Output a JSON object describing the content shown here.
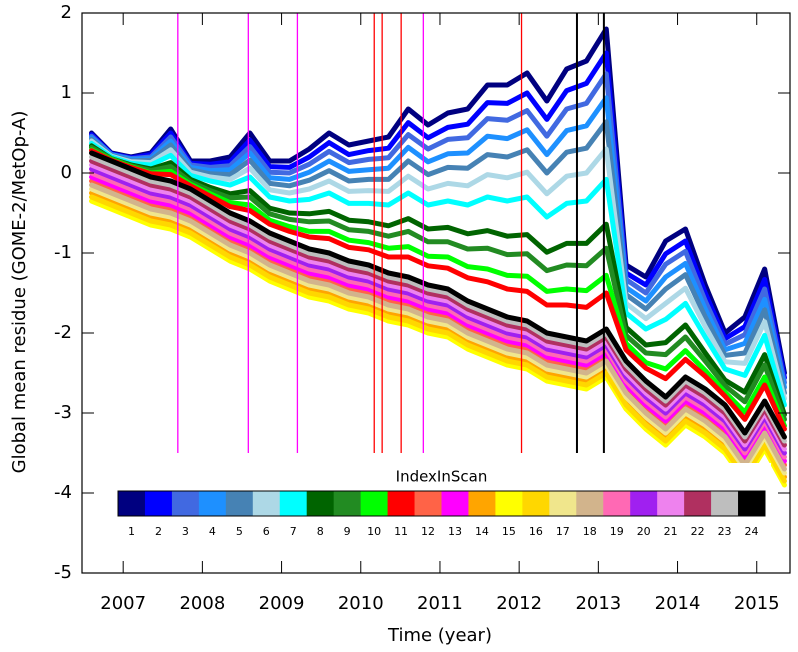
{
  "chart_data": {
    "type": "line",
    "x_label": "Time (year)",
    "y_label": "Global mean residue (GOME-2/MetOp-A)",
    "legend": "bottom",
    "legend_title": "IndexInScan",
    "xlim": [
      2006.48,
      2015.42
    ],
    "xticks": [
      2007,
      2008,
      2009,
      2010,
      2011,
      2012,
      2013,
      2014,
      2015
    ],
    "ylim": [
      -5,
      2
    ],
    "yticks": [
      2,
      1,
      0,
      -1,
      -2,
      -3,
      -4,
      -5
    ],
    "vline_ymin": -3.5,
    "vlines": [
      {
        "x": 2007.69,
        "color": "#ff00ff"
      },
      {
        "x": 2008.58,
        "color": "#ff00ff"
      },
      {
        "x": 2009.2,
        "color": "#ff00ff"
      },
      {
        "x": 2010.17,
        "color": "#ff0000"
      },
      {
        "x": 2010.27,
        "color": "#ff0000"
      },
      {
        "x": 2010.51,
        "color": "#ff0000"
      },
      {
        "x": 2010.79,
        "color": "#ff00ff"
      },
      {
        "x": 2012.03,
        "color": "#ff0000"
      },
      {
        "x": 2012.73,
        "color": "#000000"
      },
      {
        "x": 2013.07,
        "color": "#000000"
      }
    ],
    "x": [
      2006.6,
      2006.85,
      2007.1,
      2007.35,
      2007.6,
      2007.85,
      2008.1,
      2008.35,
      2008.6,
      2008.85,
      2009.1,
      2009.35,
      2009.6,
      2009.85,
      2010.1,
      2010.35,
      2010.6,
      2010.85,
      2011.1,
      2011.35,
      2011.6,
      2011.85,
      2012.1,
      2012.35,
      2012.6,
      2012.85,
      2013.1,
      2013.35,
      2013.6,
      2013.85,
      2014.1,
      2014.35,
      2014.6,
      2014.85,
      2015.1,
      2015.35
    ],
    "series": [
      {
        "name": "1",
        "color": "#000080",
        "values": [
          0.5,
          0.25,
          0.2,
          0.25,
          0.55,
          0.15,
          0.15,
          0.2,
          0.5,
          0.15,
          0.15,
          0.3,
          0.5,
          0.35,
          0.4,
          0.45,
          0.8,
          0.6,
          0.75,
          0.8,
          1.1,
          1.1,
          1.25,
          0.9,
          1.3,
          1.4,
          1.8,
          -1.15,
          -1.3,
          -0.85,
          -0.7,
          -1.4,
          -2.0,
          -1.8,
          -1.2,
          -2.5
        ]
      },
      {
        "name": "2",
        "color": "#0000ff",
        "values": [
          0.48,
          0.24,
          0.19,
          0.23,
          0.5,
          0.12,
          0.11,
          0.14,
          0.41,
          0.08,
          0.07,
          0.2,
          0.38,
          0.23,
          0.28,
          0.31,
          0.63,
          0.44,
          0.57,
          0.61,
          0.88,
          0.87,
          1,
          0.67,
          1.03,
          1.12,
          1.5,
          -1.25,
          -1.4,
          -1.01,
          -0.85,
          -1.5,
          -2.07,
          -1.92,
          -1.33,
          -2.56
        ]
      },
      {
        "name": "3",
        "color": "#4169e1",
        "values": [
          0.46,
          0.23,
          0.18,
          0.2,
          0.45,
          0.1,
          0.07,
          0.09,
          0.33,
          0.01,
          0,
          0.11,
          0.27,
          0.13,
          0.17,
          0.19,
          0.48,
          0.3,
          0.42,
          0.44,
          0.68,
          0.66,
          0.78,
          0.46,
          0.8,
          0.87,
          1.24,
          -1.33,
          -1.5,
          -1.14,
          -0.98,
          -1.6,
          -2.14,
          -2.02,
          -1.45,
          -2.62
        ]
      },
      {
        "name": "4",
        "color": "#1e90ff",
        "values": [
          0.44,
          0.23,
          0.17,
          0.18,
          0.4,
          0.07,
          0.03,
          0.04,
          0.25,
          -0.06,
          -0.08,
          0.01,
          0.15,
          0.02,
          0.04,
          0.06,
          0.32,
          0.14,
          0.24,
          0.25,
          0.46,
          0.43,
          0.54,
          0.23,
          0.53,
          0.59,
          0.94,
          -1.43,
          -1.6,
          -1.3,
          -1.13,
          -1.7,
          -2.21,
          -2.13,
          -1.58,
          -2.68
        ]
      },
      {
        "name": "5",
        "color": "#4682b4",
        "values": [
          0.42,
          0.22,
          0.15,
          0.16,
          0.35,
          0.04,
          -0.01,
          -0.02,
          0.16,
          -0.13,
          -0.16,
          -0.09,
          0.03,
          -0.1,
          -0.08,
          -0.08,
          0.15,
          -0.02,
          0.07,
          0.06,
          0.23,
          0.2,
          0.29,
          0,
          0.26,
          0.31,
          0.64,
          -1.52,
          -1.7,
          -1.45,
          -1.27,
          -1.8,
          -2.28,
          -2.25,
          -1.71,
          -2.75
        ]
      },
      {
        "name": "6",
        "color": "#add8e6",
        "values": [
          0.4,
          0.21,
          0.14,
          0.13,
          0.29,
          0.01,
          -0.05,
          -0.08,
          0.06,
          -0.21,
          -0.25,
          -0.2,
          -0.1,
          -0.23,
          -0.22,
          -0.23,
          -0.04,
          -0.2,
          -0.13,
          -0.16,
          -0.02,
          -0.06,
          0.01,
          -0.26,
          -0.04,
          0,
          0.3,
          -1.63,
          -1.82,
          -1.63,
          -1.44,
          -1.92,
          -2.36,
          -2.38,
          -1.86,
          -2.82
        ]
      },
      {
        "name": "7",
        "color": "#00ffff",
        "values": [
          0.37,
          0.2,
          0.12,
          0.1,
          0.22,
          -0.03,
          -0.1,
          -0.15,
          -0.05,
          -0.3,
          -0.35,
          -0.33,
          -0.25,
          -0.38,
          -0.38,
          -0.4,
          -0.25,
          -0.4,
          -0.35,
          -0.4,
          -0.3,
          -0.35,
          -0.3,
          -0.55,
          -0.38,
          -0.35,
          -0.08,
          -1.75,
          -1.95,
          -1.83,
          -1.63,
          -2.05,
          -2.45,
          -2.53,
          -2.03,
          -2.9
        ]
      },
      {
        "name": "8",
        "color": "#006400",
        "values": [
          0.34,
          0.18,
          0.1,
          0.05,
          0.13,
          -0.08,
          -0.18,
          -0.26,
          -0.22,
          -0.44,
          -0.5,
          -0.51,
          -0.48,
          -0.59,
          -0.61,
          -0.66,
          -0.57,
          -0.7,
          -0.68,
          -0.76,
          -0.72,
          -0.79,
          -0.77,
          -0.99,
          -0.88,
          -0.88,
          -0.64,
          -1.93,
          -2.15,
          -2.12,
          -1.9,
          -2.25,
          -2.59,
          -2.74,
          -2.27,
          -3.02
        ]
      },
      {
        "name": "9",
        "color": "#228b22",
        "values": [
          0.32,
          0.18,
          0.09,
          0.03,
          0.08,
          -0.11,
          -0.22,
          -0.31,
          -0.3,
          -0.51,
          -0.58,
          -0.61,
          -0.6,
          -0.71,
          -0.73,
          -0.79,
          -0.73,
          -0.86,
          -0.86,
          -0.95,
          -0.94,
          -1.02,
          -1.01,
          -1.22,
          -1.15,
          -1.16,
          -0.94,
          -2.03,
          -2.25,
          -2.27,
          -2.05,
          -2.35,
          -2.66,
          -2.86,
          -2.4,
          -3.08
        ]
      },
      {
        "name": "10",
        "color": "#00ff00",
        "values": [
          0.29,
          0.17,
          0.08,
          0,
          0.02,
          -0.14,
          -0.26,
          -0.37,
          -0.4,
          -0.59,
          -0.67,
          -0.73,
          -0.73,
          -0.84,
          -0.87,
          -0.94,
          -0.92,
          -1.04,
          -1.05,
          -1.17,
          -1.2,
          -1.28,
          -1.29,
          -1.48,
          -1.45,
          -1.47,
          -1.28,
          -2.13,
          -2.37,
          -2.45,
          -2.22,
          -2.47,
          -2.74,
          -2.99,
          -2.55,
          -3.16
        ]
      },
      {
        "name": "11",
        "color": "#ff0000",
        "values": [
          0.28,
          0.16,
          0.07,
          -0.01,
          -0.02,
          -0.16,
          -0.29,
          -0.42,
          -0.47,
          -0.64,
          -0.73,
          -0.8,
          -0.82,
          -0.93,
          -0.96,
          -1.05,
          -1.05,
          -1.16,
          -1.19,
          -1.31,
          -1.36,
          -1.45,
          -1.48,
          -1.65,
          -1.65,
          -1.68,
          -1.5,
          -2.21,
          -2.44,
          -2.57,
          -2.33,
          -2.54,
          -2.79,
          -3.08,
          -2.65,
          -3.2
        ]
      },
      {
        "name": "12",
        "color": "#ff6347",
        "values": [
          -0.1,
          -0.2,
          -0.3,
          -0.4,
          -0.45,
          -0.55,
          -0.7,
          -0.85,
          -0.95,
          -1.1,
          -1.2,
          -1.3,
          -1.35,
          -1.45,
          -1.5,
          -1.6,
          -1.65,
          -1.75,
          -1.8,
          -1.95,
          -2.05,
          -2.15,
          -2.2,
          -2.35,
          -2.4,
          -2.45,
          -2.3,
          -2.7,
          -2.95,
          -3.15,
          -2.9,
          -3.05,
          -3.25,
          -3.6,
          -3.2,
          -3.65
        ]
      },
      {
        "name": "13",
        "color": "#ff00ff",
        "values": [
          -0.05,
          -0.15,
          -0.25,
          -0.35,
          -0.4,
          -0.5,
          -0.65,
          -0.8,
          -0.9,
          -1.05,
          -1.15,
          -1.25,
          -1.3,
          -1.4,
          -1.45,
          -1.55,
          -1.6,
          -1.7,
          -1.75,
          -1.9,
          -2,
          -2.1,
          -2.15,
          -2.3,
          -2.35,
          -2.4,
          -2.25,
          -2.65,
          -2.9,
          -3.1,
          -2.85,
          -3,
          -3.2,
          -3.55,
          -3.15,
          -3.6
        ]
      },
      {
        "name": "14",
        "color": "#ffa500",
        "values": [
          -0.25,
          -0.35,
          -0.45,
          -0.55,
          -0.6,
          -0.7,
          -0.85,
          -1,
          -1.1,
          -1.25,
          -1.35,
          -1.45,
          -1.5,
          -1.6,
          -1.65,
          -1.75,
          -1.8,
          -1.9,
          -1.95,
          -2.1,
          -2.2,
          -2.3,
          -2.35,
          -2.5,
          -2.55,
          -2.6,
          -2.45,
          -2.85,
          -3.1,
          -3.3,
          -3.05,
          -3.2,
          -3.4,
          -3.75,
          -3.35,
          -3.8
        ]
      },
      {
        "name": "15",
        "color": "#ffff00",
        "values": [
          -0.35,
          -0.45,
          -0.55,
          -0.65,
          -0.7,
          -0.8,
          -0.95,
          -1.1,
          -1.2,
          -1.35,
          -1.45,
          -1.55,
          -1.6,
          -1.7,
          -1.75,
          -1.85,
          -1.9,
          -2,
          -2.05,
          -2.2,
          -2.3,
          -2.4,
          -2.45,
          -2.6,
          -2.65,
          -2.7,
          -2.55,
          -2.95,
          -3.2,
          -3.4,
          -3.15,
          -3.3,
          -3.5,
          -3.85,
          -3.45,
          -3.9
        ]
      },
      {
        "name": "16",
        "color": "#ffd700",
        "values": [
          -0.3,
          -0.4,
          -0.5,
          -0.6,
          -0.65,
          -0.75,
          -0.9,
          -1.05,
          -1.15,
          -1.3,
          -1.4,
          -1.5,
          -1.55,
          -1.65,
          -1.7,
          -1.8,
          -1.85,
          -1.95,
          -2,
          -2.15,
          -2.25,
          -2.35,
          -2.4,
          -2.55,
          -2.6,
          -2.65,
          -2.5,
          -2.9,
          -3.15,
          -3.35,
          -3.1,
          -3.25,
          -3.45,
          -3.8,
          -3.4,
          -3.85
        ]
      },
      {
        "name": "17",
        "color": "#f0e68c",
        "values": [
          -0.2,
          -0.3,
          -0.4,
          -0.5,
          -0.55,
          -0.65,
          -0.8,
          -0.95,
          -1.05,
          -1.2,
          -1.3,
          -1.4,
          -1.45,
          -1.55,
          -1.6,
          -1.7,
          -1.75,
          -1.85,
          -1.9,
          -2.05,
          -2.15,
          -2.25,
          -2.3,
          -2.45,
          -2.5,
          -2.55,
          -2.4,
          -2.8,
          -3.05,
          -3.25,
          -3,
          -3.15,
          -3.35,
          -3.7,
          -3.3,
          -3.75
        ]
      },
      {
        "name": "18",
        "color": "#d2b48c",
        "values": [
          -0.15,
          -0.25,
          -0.35,
          -0.45,
          -0.5,
          -0.6,
          -0.75,
          -0.9,
          -1,
          -1.15,
          -1.25,
          -1.35,
          -1.4,
          -1.5,
          -1.55,
          -1.65,
          -1.7,
          -1.8,
          -1.85,
          -2,
          -2.1,
          -2.2,
          -2.25,
          -2.4,
          -2.45,
          -2.5,
          -2.35,
          -2.75,
          -3,
          -3.2,
          -2.95,
          -3.1,
          -3.3,
          -3.65,
          -3.25,
          -3.7
        ]
      },
      {
        "name": "19",
        "color": "#ff69b4",
        "values": [
          0,
          -0.1,
          -0.2,
          -0.3,
          -0.35,
          -0.45,
          -0.6,
          -0.75,
          -0.85,
          -1,
          -1.1,
          -1.2,
          -1.25,
          -1.35,
          -1.4,
          -1.5,
          -1.55,
          -1.65,
          -1.7,
          -1.85,
          -1.95,
          -2.05,
          -2.1,
          -2.25,
          -2.3,
          -2.35,
          -2.2,
          -2.6,
          -2.85,
          -3.05,
          -2.8,
          -2.95,
          -3.15,
          -3.5,
          -3.1,
          -3.55
        ]
      },
      {
        "name": "20",
        "color": "#a020f0",
        "values": [
          0.05,
          -0.05,
          -0.15,
          -0.25,
          -0.3,
          -0.4,
          -0.55,
          -0.7,
          -0.8,
          -0.95,
          -1.05,
          -1.15,
          -1.2,
          -1.3,
          -1.35,
          -1.45,
          -1.5,
          -1.6,
          -1.65,
          -1.8,
          -1.9,
          -2,
          -2.05,
          -2.2,
          -2.25,
          -2.3,
          -2.15,
          -2.55,
          -2.8,
          -3,
          -2.75,
          -2.9,
          -3.1,
          -3.45,
          -3.05,
          -3.5
        ]
      },
      {
        "name": "21",
        "color": "#ee82ee",
        "values": [
          0.1,
          0,
          -0.1,
          -0.2,
          -0.25,
          -0.35,
          -0.5,
          -0.65,
          -0.75,
          -0.9,
          -1,
          -1.1,
          -1.15,
          -1.25,
          -1.3,
          -1.4,
          -1.45,
          -1.55,
          -1.6,
          -1.75,
          -1.85,
          -1.95,
          -2,
          -2.15,
          -2.2,
          -2.25,
          -2.1,
          -2.5,
          -2.75,
          -2.95,
          -2.7,
          -2.85,
          -3.05,
          -3.4,
          -3,
          -3.45
        ]
      },
      {
        "name": "22",
        "color": "#b03060",
        "values": [
          0.15,
          0.05,
          -0.05,
          -0.15,
          -0.2,
          -0.3,
          -0.45,
          -0.6,
          -0.7,
          -0.85,
          -0.95,
          -1.05,
          -1.1,
          -1.2,
          -1.25,
          -1.35,
          -1.4,
          -1.5,
          -1.55,
          -1.7,
          -1.8,
          -1.9,
          -1.95,
          -2.1,
          -2.15,
          -2.2,
          -2.05,
          -2.45,
          -2.7,
          -2.9,
          -2.65,
          -2.8,
          -3,
          -3.35,
          -2.95,
          -3.4
        ]
      },
      {
        "name": "23",
        "color": "#bebebe",
        "values": [
          0.2,
          0.1,
          0,
          -0.1,
          -0.15,
          -0.25,
          -0.4,
          -0.55,
          -0.65,
          -0.8,
          -0.9,
          -1,
          -1.05,
          -1.15,
          -1.2,
          -1.3,
          -1.35,
          -1.45,
          -1.5,
          -1.65,
          -1.75,
          -1.85,
          -1.9,
          -2.05,
          -2.1,
          -2.15,
          -2,
          -2.4,
          -2.65,
          -2.85,
          -2.6,
          -2.75,
          -2.95,
          -3.3,
          -2.9,
          -3.35
        ]
      },
      {
        "name": "24",
        "color": "#000000",
        "values": [
          0.25,
          0.15,
          0.05,
          -0.05,
          -0.1,
          -0.2,
          -0.35,
          -0.5,
          -0.6,
          -0.75,
          -0.85,
          -0.95,
          -1.0,
          -1.1,
          -1.15,
          -1.25,
          -1.3,
          -1.4,
          -1.45,
          -1.6,
          -1.7,
          -1.8,
          -1.85,
          -2.0,
          -2.05,
          -2.1,
          -1.95,
          -2.35,
          -2.6,
          -2.8,
          -2.55,
          -2.7,
          -2.9,
          -3.25,
          -2.85,
          -3.3
        ]
      }
    ]
  }
}
